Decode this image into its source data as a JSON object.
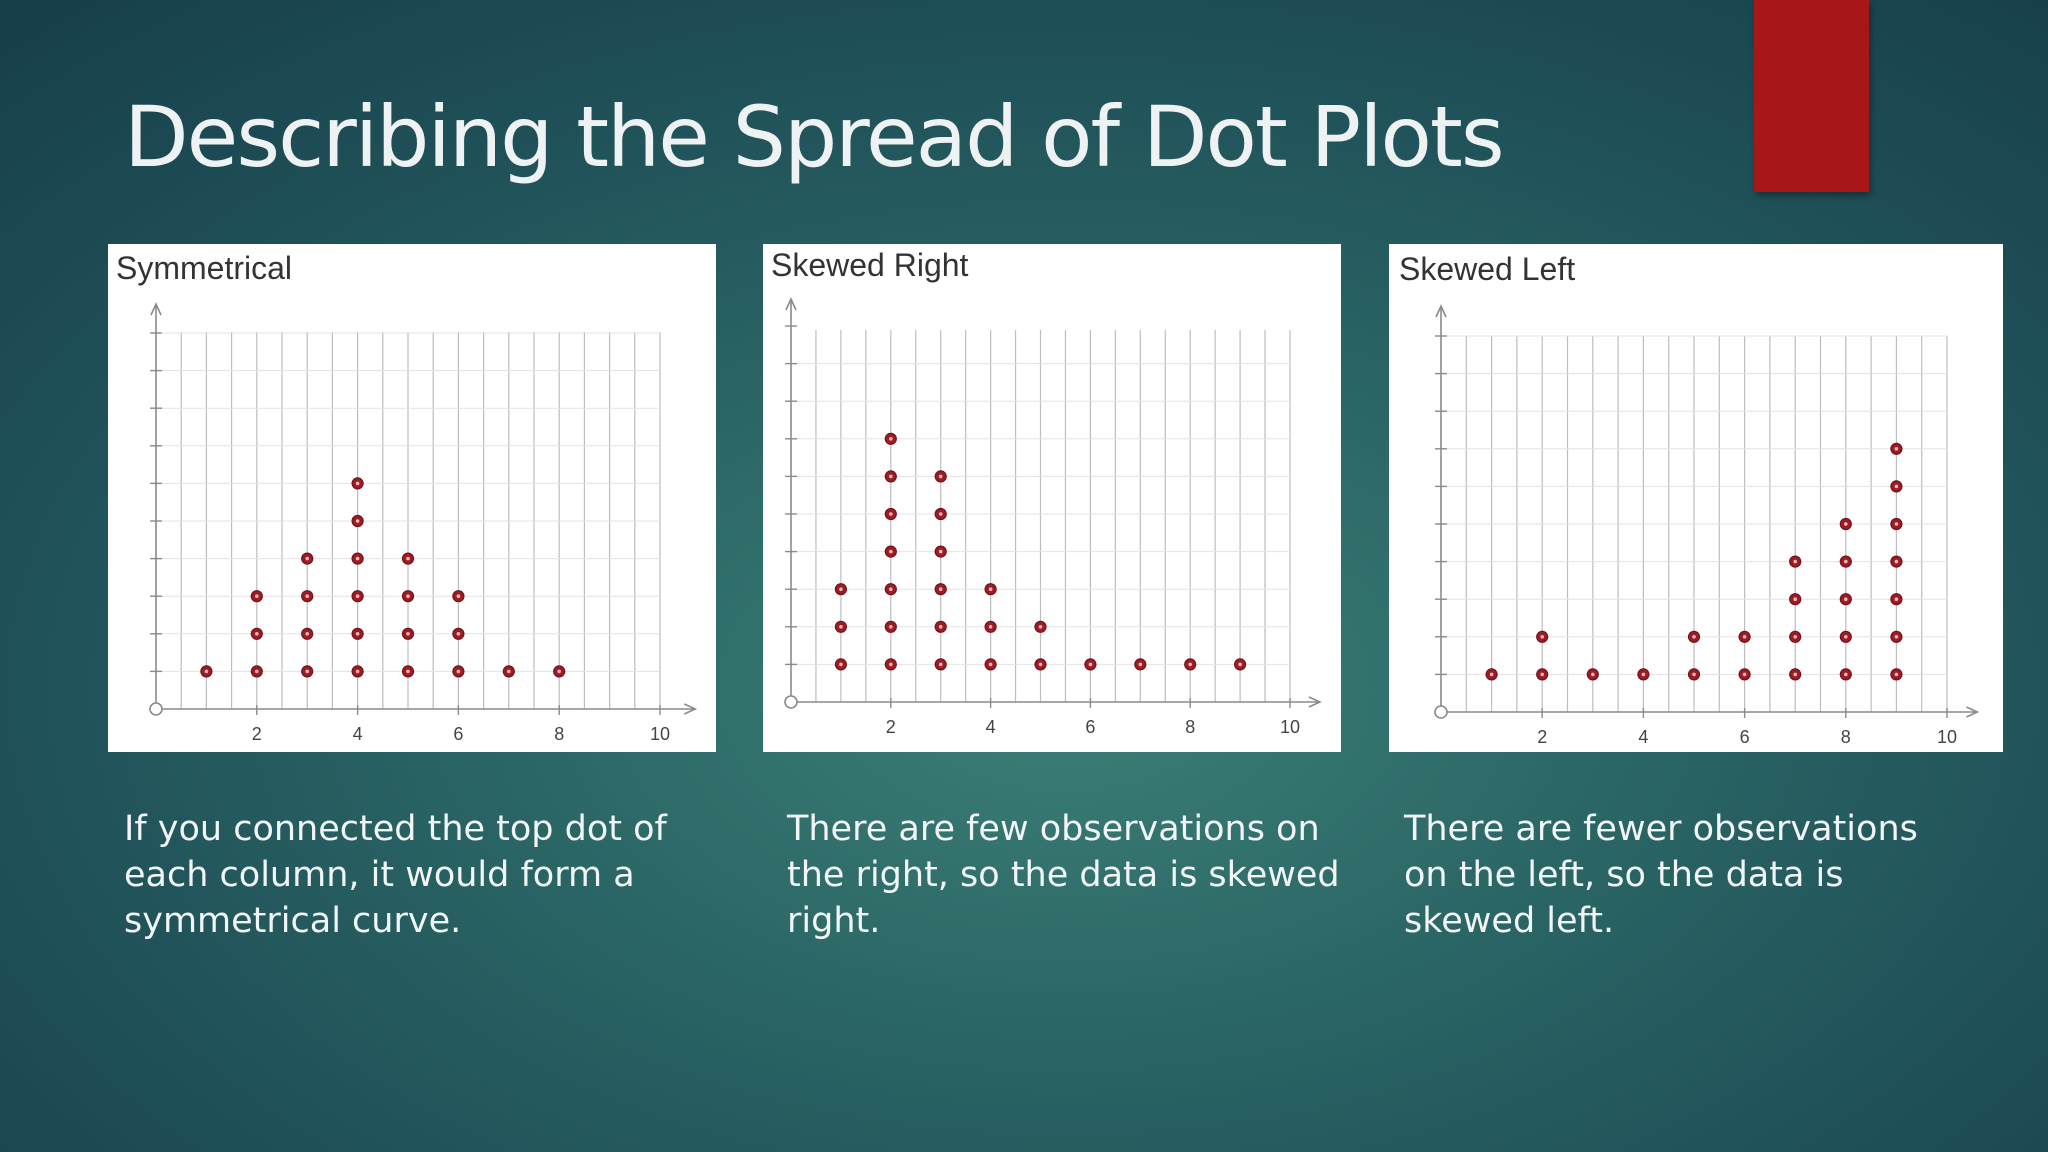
{
  "slide": {
    "title": "Describing the Spread of Dot Plots",
    "accent_color": "#a81717",
    "dot_color": "#9b1c24"
  },
  "captions": [
    "If you connected the top dot of each column, it would form a symmetrical curve.",
    "There are few observations on the right, so the data is skewed right.",
    "There are fewer observations on the left, so the data is skewed left."
  ],
  "chart_data": [
    {
      "type": "scatter",
      "title": "Symmetrical",
      "x_tick_labels": [
        "2",
        "4",
        "6",
        "8",
        "10"
      ],
      "xlim": [
        0,
        10
      ],
      "ylim": [
        0,
        10
      ],
      "grid": true,
      "columns": [
        {
          "x": 1,
          "count": 1
        },
        {
          "x": 2,
          "count": 3
        },
        {
          "x": 3,
          "count": 4
        },
        {
          "x": 4,
          "count": 6
        },
        {
          "x": 5,
          "count": 4
        },
        {
          "x": 6,
          "count": 3
        },
        {
          "x": 7,
          "count": 1
        },
        {
          "x": 8,
          "count": 1
        }
      ]
    },
    {
      "type": "scatter",
      "title": "Skewed Right",
      "x_tick_labels": [
        "2",
        "4",
        "6",
        "8",
        "10"
      ],
      "xlim": [
        0,
        10
      ],
      "ylim": [
        0,
        10
      ],
      "grid": true,
      "columns": [
        {
          "x": 1,
          "count": 3
        },
        {
          "x": 2,
          "count": 7
        },
        {
          "x": 3,
          "count": 6
        },
        {
          "x": 4,
          "count": 3
        },
        {
          "x": 5,
          "count": 2
        },
        {
          "x": 6,
          "count": 1
        },
        {
          "x": 7,
          "count": 1
        },
        {
          "x": 8,
          "count": 1
        },
        {
          "x": 9,
          "count": 1
        }
      ]
    },
    {
      "type": "scatter",
      "title": "Skewed Left",
      "x_tick_labels": [
        "2",
        "4",
        "6",
        "8",
        "10"
      ],
      "xlim": [
        0,
        10
      ],
      "ylim": [
        0,
        10
      ],
      "grid": true,
      "columns": [
        {
          "x": 1,
          "count": 1
        },
        {
          "x": 2,
          "count": 2
        },
        {
          "x": 3,
          "count": 1
        },
        {
          "x": 4,
          "count": 1
        },
        {
          "x": 5,
          "count": 2
        },
        {
          "x": 6,
          "count": 2
        },
        {
          "x": 7,
          "count": 4
        },
        {
          "x": 8,
          "count": 5
        },
        {
          "x": 9,
          "count": 7
        }
      ]
    }
  ]
}
